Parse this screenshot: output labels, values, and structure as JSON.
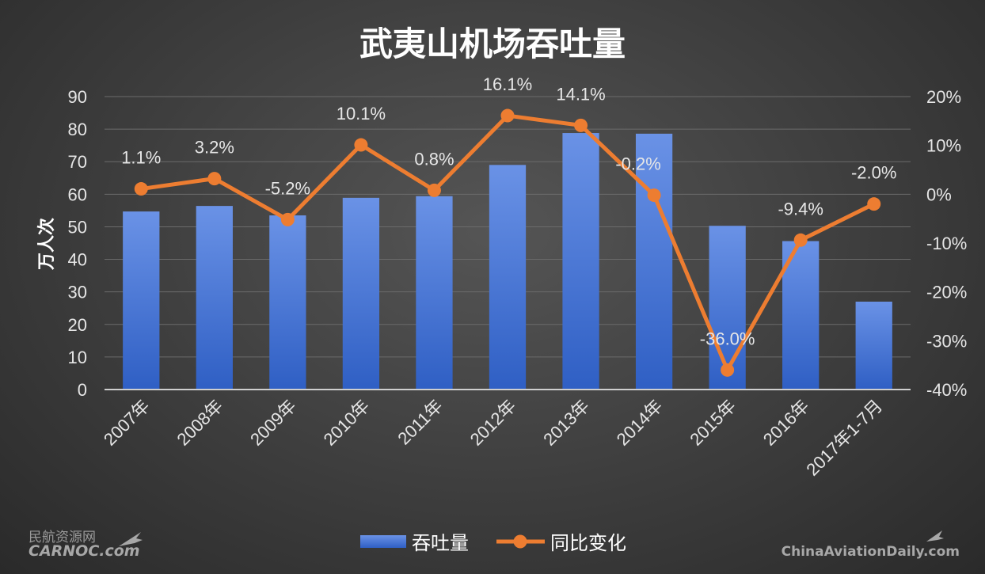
{
  "chart_data": {
    "type": "bar+line",
    "title": "武夷山机场吞吐量",
    "ylabel": "万人次",
    "categories": [
      "2007年",
      "2008年",
      "2009年",
      "2010年",
      "2011年",
      "2012年",
      "2013年",
      "2014年",
      "2015年",
      "2016年",
      "2017年1-7月"
    ],
    "ylim": [
      0,
      90
    ],
    "y_ticks": [
      0,
      10,
      20,
      30,
      40,
      50,
      60,
      70,
      80,
      90
    ],
    "y2lim": [
      -40,
      20
    ],
    "y2_ticks": [
      -40,
      -30,
      -20,
      -10,
      0,
      10,
      20
    ],
    "y_tick_labels": [
      "0",
      "10",
      "20",
      "30",
      "40",
      "50",
      "60",
      "70",
      "80",
      "90"
    ],
    "y2_tick_labels": [
      "-40%",
      "-30%",
      "-20%",
      "-10%",
      "0%",
      "10%",
      "20%"
    ],
    "series": [
      {
        "name": "吞吐量",
        "type": "bar",
        "axis": "left",
        "color": "#4a78d8",
        "values": [
          54.7,
          56.4,
          53.5,
          58.9,
          59.4,
          69.0,
          78.8,
          78.6,
          50.3,
          45.6,
          27.0
        ]
      },
      {
        "name": "同比变化",
        "type": "line",
        "axis": "right",
        "color": "#ed7d31",
        "values": [
          1.1,
          3.2,
          -5.2,
          10.1,
          0.8,
          16.1,
          14.1,
          -0.2,
          -36.0,
          -9.4,
          -2.0
        ],
        "labels": [
          "1.1%",
          "3.2%",
          "-5.2%",
          "10.1%",
          "0.8%",
          "16.1%",
          "14.1%",
          "-0.2%",
          "-36.0%",
          "-9.4%",
          "-2.0%"
        ]
      }
    ],
    "grid": true,
    "legend": "bottom-center"
  },
  "watermarks": {
    "left_cn": "民航资源网",
    "left_en": "CARNOC.com",
    "right": "ChinaAviationDaily.com"
  }
}
